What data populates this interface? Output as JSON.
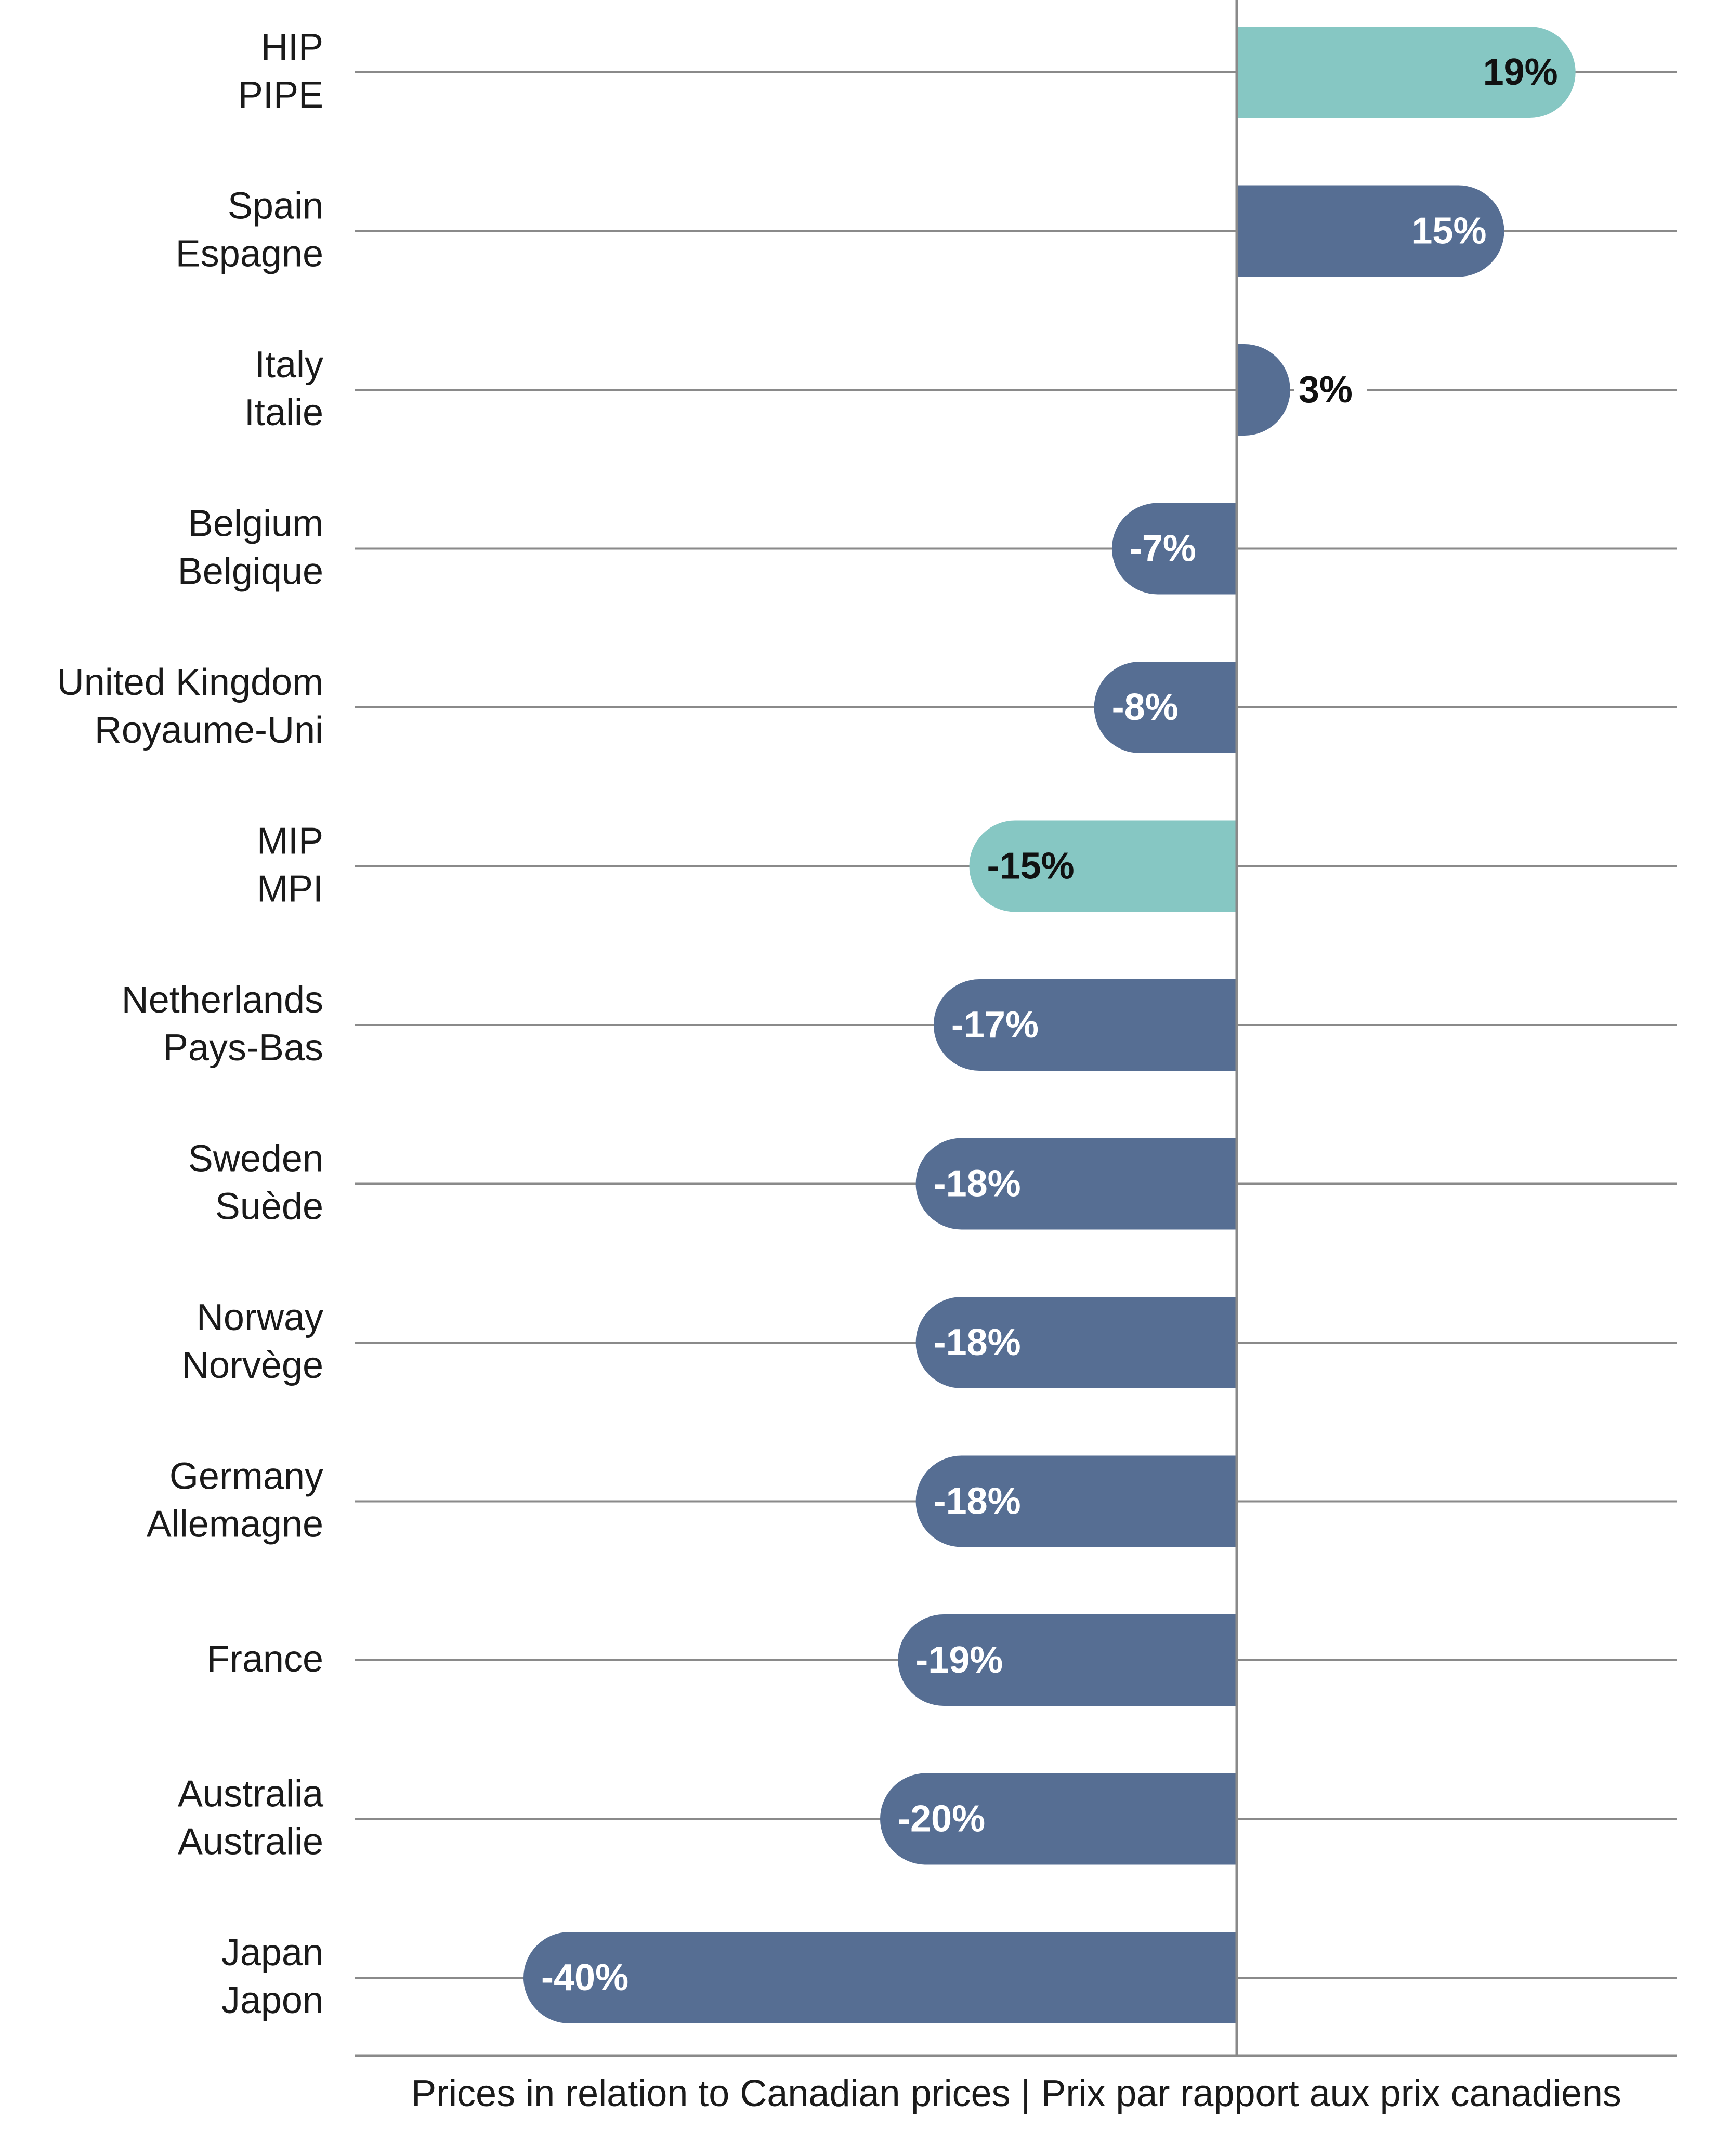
{
  "chart_data": {
    "type": "bar",
    "orientation": "horizontal",
    "xlabel": "Prices in relation to Canadian prices | Prix par rapport aux prix canadiens",
    "ylabel": "",
    "title": "",
    "xlim": [
      -50,
      25
    ],
    "grid": true,
    "categories": [
      {
        "label": [
          "HIP",
          "PIPE"
        ],
        "value": 19,
        "value_label": "19%",
        "highlight": true
      },
      {
        "label": [
          "Spain",
          "Espagne"
        ],
        "value": 15,
        "value_label": "15%",
        "highlight": false
      },
      {
        "label": [
          "Italy",
          "Italie"
        ],
        "value": 3,
        "value_label": "3%",
        "highlight": false
      },
      {
        "label": [
          "Belgium",
          "Belgique"
        ],
        "value": -7,
        "value_label": "-7%",
        "highlight": false
      },
      {
        "label": [
          "United Kingdom",
          "Royaume-Uni"
        ],
        "value": -8,
        "value_label": "-8%",
        "highlight": false
      },
      {
        "label": [
          "MIP",
          "MPI"
        ],
        "value": -15,
        "value_label": "-15%",
        "highlight": true
      },
      {
        "label": [
          "Netherlands",
          "Pays-Bas"
        ],
        "value": -17,
        "value_label": "-17%",
        "highlight": false
      },
      {
        "label": [
          "Sweden",
          "Suède"
        ],
        "value": -18,
        "value_label": "-18%",
        "highlight": false
      },
      {
        "label": [
          "Norway",
          "Norvège"
        ],
        "value": -18,
        "value_label": "-18%",
        "highlight": false
      },
      {
        "label": [
          "Germany",
          "Allemagne"
        ],
        "value": -18,
        "value_label": "-18%",
        "highlight": false
      },
      {
        "label": [
          "France"
        ],
        "value": -19,
        "value_label": "-19%",
        "highlight": false
      },
      {
        "label": [
          "Australia",
          "Australie"
        ],
        "value": -20,
        "value_label": "-20%",
        "highlight": false
      },
      {
        "label": [
          "Japan",
          "Japon"
        ],
        "value": -40,
        "value_label": "-40%",
        "highlight": false
      }
    ],
    "colors": {
      "bar": "#566e93",
      "highlight": "#86c7c3",
      "gridline": "#8a8a8a",
      "axis": "#8a8a8a",
      "label_on_bar": "#ffffff",
      "label_on_highlight": "#111111",
      "label_outside": "#111111"
    }
  }
}
